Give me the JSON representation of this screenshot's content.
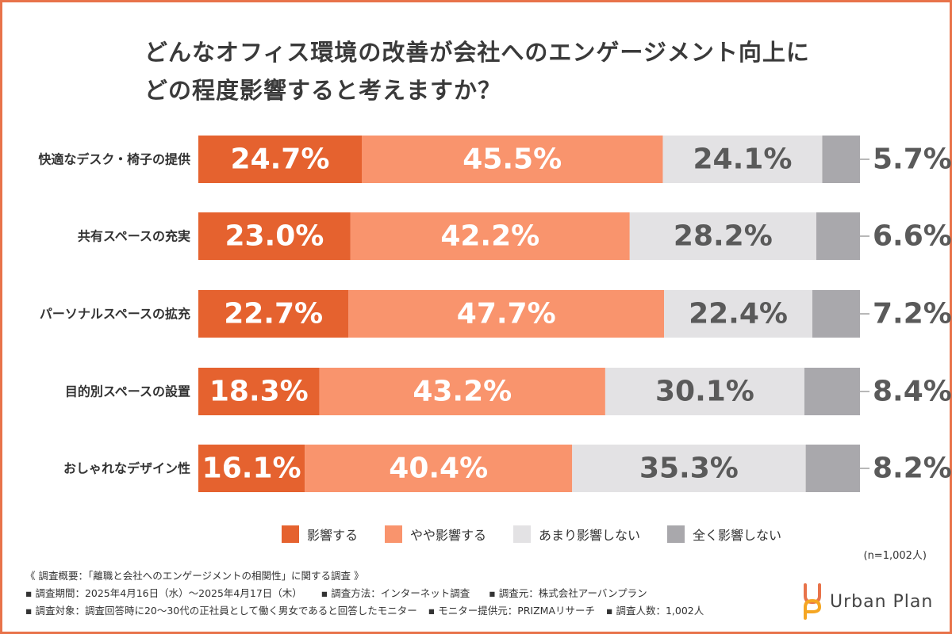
{
  "title_lines": [
    "どんなオフィス環境の改善が会社へのエンゲージメント向上に",
    "どの程度影響すると考えますか？"
  ],
  "colors": {
    "frame": "#e8734a",
    "s1": "#e5622f",
    "s2": "#f9946d",
    "s3": "#e3e2e4",
    "s4": "#a9a8ac",
    "label_light": "#ffffff",
    "label_dark": "#5a5a5a"
  },
  "chart_data": {
    "type": "bar",
    "orientation": "horizontal",
    "stacked": true,
    "normalized_100": true,
    "categories": [
      "快適なデスク・椅子の提供",
      "共有スペースの充実",
      "パーソナルスペースの拡充",
      "目的別スペースの設置",
      "おしゃれなデザイン性"
    ],
    "series": [
      {
        "name": "影響する",
        "values": [
          24.7,
          23.0,
          22.7,
          18.3,
          16.1
        ],
        "labels": [
          "24.7%",
          "23.0%",
          "22.7%",
          "18.3%",
          "16.1%"
        ]
      },
      {
        "name": "やや影響する",
        "values": [
          45.5,
          42.2,
          47.7,
          43.2,
          40.4
        ],
        "labels": [
          "45.5%",
          "42.2%",
          "47.7%",
          "43.2%",
          "40.4%"
        ]
      },
      {
        "name": "あまり影響しない",
        "values": [
          24.1,
          28.2,
          22.4,
          30.1,
          35.3
        ],
        "labels": [
          "24.1%",
          "28.2%",
          "22.4%",
          "30.1%",
          "35.3%"
        ]
      },
      {
        "name": "全く影響しない",
        "values": [
          5.7,
          6.6,
          7.2,
          8.4,
          8.2
        ],
        "labels": [
          "5.7%",
          "6.6%",
          "7.2%",
          "8.4%",
          "8.2%"
        ]
      }
    ],
    "legend_position": "bottom"
  },
  "sample_note": "(n=1,002人)",
  "notes": {
    "line1": "《 調査概要：「離職と会社へのエンゲージメントの相関性」に関する調査 》",
    "period": "▪ 調査期間：2025年4月16日（水）〜2025年4月17日（木）",
    "method": "▪ 調査方法：インターネット調査",
    "org": "▪ 調査元：株式会社アーバンプラン",
    "target": "▪ 調査対象：調査回答時に20〜30代の正社員として働く男女であると回答したモニター",
    "provider": "▪ モニター提供元：PRIZMAリサーチ",
    "count": "▪ 調査人数：1,002人"
  },
  "logo": {
    "name": "Urban Plan",
    "icon": "urban-plan-logo-icon"
  }
}
